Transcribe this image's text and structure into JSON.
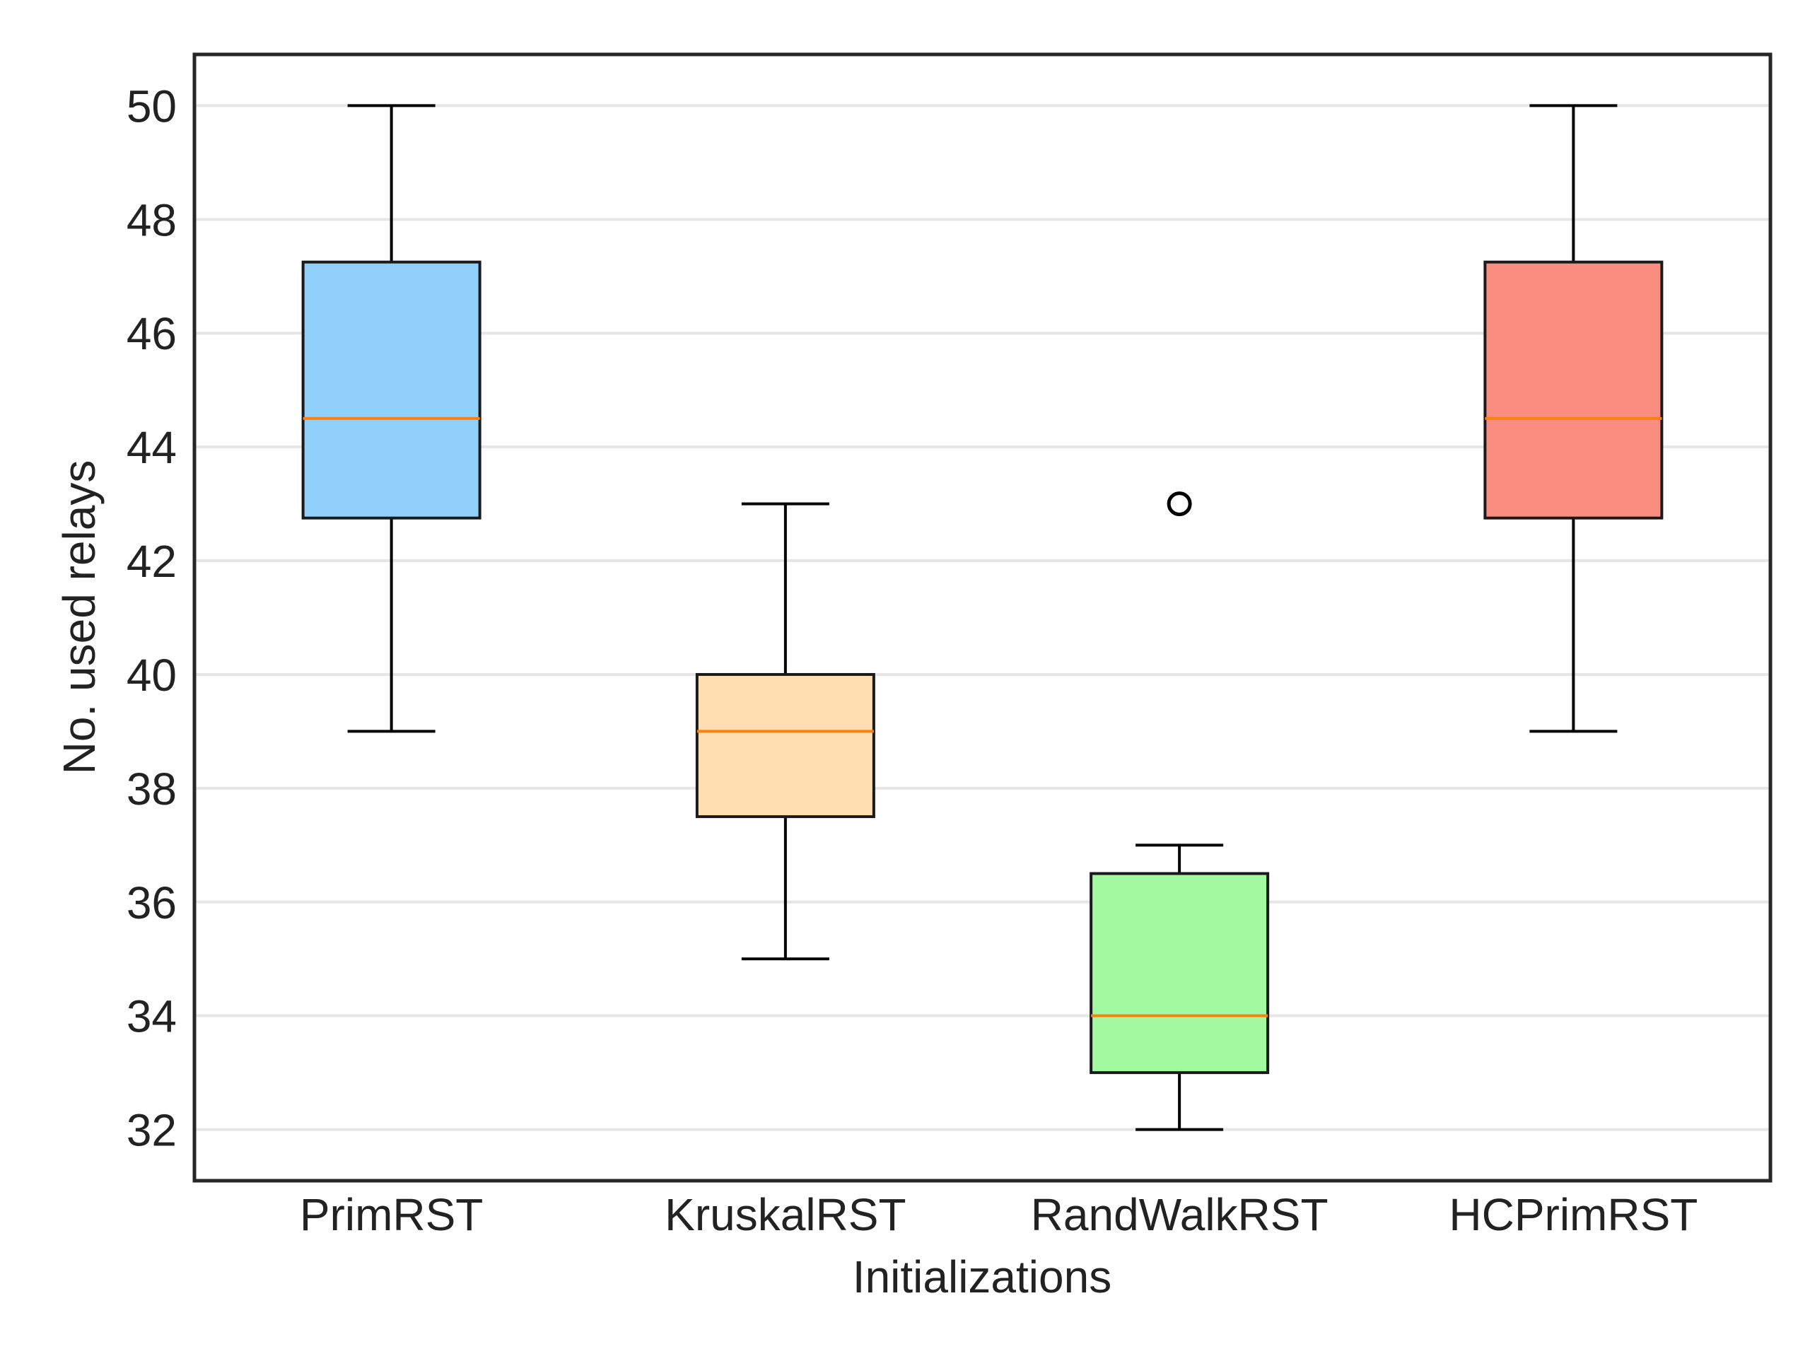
{
  "chart_data": {
    "type": "box",
    "title": "",
    "xlabel": "Initializations",
    "ylabel": "No. used relays",
    "ylim": [
      31.1,
      50.9
    ],
    "yticks": [
      32,
      34,
      36,
      38,
      40,
      42,
      44,
      46,
      48,
      50
    ],
    "grid": "horizontal",
    "categories": [
      "PrimRST",
      "KruskalRST",
      "RandWalkRST",
      "HCPrimRST"
    ],
    "boxes": [
      {
        "category": "PrimRST",
        "whisker_low": 39,
        "q1": 42.75,
        "median": 44.5,
        "q3": 47.25,
        "whisker_high": 50,
        "outliers": [],
        "color": "#90d0fb"
      },
      {
        "category": "KruskalRST",
        "whisker_low": 35,
        "q1": 37.5,
        "median": 39,
        "q3": 40,
        "whisker_high": 43,
        "outliers": [],
        "color": "#ffdfb2"
      },
      {
        "category": "RandWalkRST",
        "whisker_low": 32,
        "q1": 33,
        "median": 34,
        "q3": 36.5,
        "whisker_high": 37,
        "outliers": [
          43
        ],
        "color": "#a3f9a0"
      },
      {
        "category": "HCPrimRST",
        "whisker_low": 39,
        "q1": 42.75,
        "median": 44.5,
        "q3": 47.25,
        "whisker_high": 50,
        "outliers": [],
        "color": "#f98d80"
      }
    ],
    "colors": {
      "median": "#ff7f0e",
      "edge": "#1a1a1a",
      "grid": "#e6e6e6",
      "frame": "#262626"
    }
  }
}
